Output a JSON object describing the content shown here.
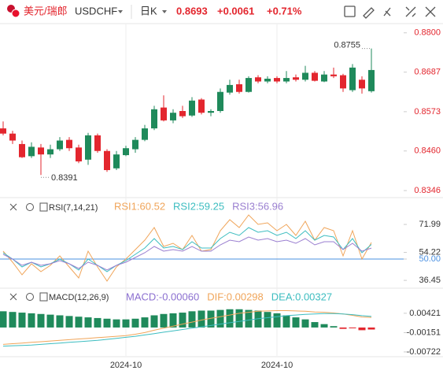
{
  "header": {
    "name": "美元/瑞郎",
    "symbol": "USDCHF",
    "period": "日K",
    "price": "0.8693",
    "change": "+0.0061",
    "change_pct": "+0.71%"
  },
  "chart_data": [
    {
      "type": "candlestick",
      "up_color": "#1f8a5b",
      "down_color": "#e3262e",
      "open": [
        0.8525,
        0.851,
        0.848,
        0.8445,
        0.847,
        0.845,
        0.8465,
        0.8492,
        0.847,
        0.8435,
        0.8505,
        0.846,
        0.841,
        0.8448,
        0.8465,
        0.8492,
        0.8525,
        0.8585,
        0.8548,
        0.8575,
        0.8562,
        0.8608,
        0.857,
        0.8575,
        0.8628,
        0.8652,
        0.863,
        0.8672,
        0.866,
        0.867,
        0.866,
        0.8672,
        0.8665,
        0.8685,
        0.866,
        0.868,
        0.8678,
        0.8635,
        0.8665,
        0.8632
      ],
      "high": [
        0.8545,
        0.8518,
        0.849,
        0.8485,
        0.848,
        0.8478,
        0.85,
        0.85,
        0.8478,
        0.8512,
        0.851,
        0.8465,
        0.846,
        0.8475,
        0.85,
        0.8535,
        0.859,
        0.862,
        0.858,
        0.859,
        0.8615,
        0.8612,
        0.858,
        0.864,
        0.8665,
        0.8665,
        0.8675,
        0.8678,
        0.8675,
        0.8675,
        0.869,
        0.868,
        0.8705,
        0.869,
        0.869,
        0.87,
        0.8682,
        0.871,
        0.8675,
        0.8755
      ],
      "low": [
        0.8505,
        0.848,
        0.844,
        0.844,
        0.8391,
        0.844,
        0.846,
        0.846,
        0.8425,
        0.842,
        0.8455,
        0.84,
        0.8405,
        0.8445,
        0.8455,
        0.8488,
        0.852,
        0.8545,
        0.854,
        0.8555,
        0.8558,
        0.8565,
        0.856,
        0.857,
        0.8622,
        0.8625,
        0.8628,
        0.8655,
        0.8655,
        0.8655,
        0.8655,
        0.866,
        0.866,
        0.866,
        0.8658,
        0.867,
        0.863,
        0.863,
        0.8625,
        0.8628
      ],
      "close": [
        0.851,
        0.849,
        0.8442,
        0.8472,
        0.845,
        0.8465,
        0.849,
        0.8468,
        0.843,
        0.8505,
        0.846,
        0.8405,
        0.845,
        0.8468,
        0.8492,
        0.8525,
        0.858,
        0.8548,
        0.857,
        0.856,
        0.8605,
        0.857,
        0.8575,
        0.863,
        0.865,
        0.863,
        0.867,
        0.866,
        0.8668,
        0.866,
        0.867,
        0.8665,
        0.8685,
        0.8662,
        0.868,
        0.8675,
        0.864,
        0.87,
        0.864,
        0.8693
      ],
      "ylim": [
        0.8328,
        0.8822
      ],
      "yticks": [
        {
          "value": 0.88,
          "label": "0.8800"
        },
        0.8687,
        0.8573,
        {
          "value": 0.846,
          "label": "0.8460"
        },
        0.8346
      ],
      "high_label": "0.8755",
      "low_label": "0.8391"
    },
    {
      "type": "line",
      "title": "RSI(7,14,21)",
      "ylim": [
        32,
        88.5
      ],
      "yticks": [
        71.99,
        54.22,
        {
          "value": 50,
          "label": "50.00"
        },
        36.45
      ],
      "reference_line": 50,
      "series": [
        {
          "name": "RSI1",
          "label": "RSI1:60.52",
          "color": "#f0a55a",
          "values": [
            55,
            48,
            40,
            47,
            42,
            46,
            52,
            45,
            38,
            55,
            45,
            36,
            45,
            50,
            56,
            62,
            70,
            58,
            60,
            56,
            65,
            55,
            56,
            68,
            75,
            70,
            78,
            72,
            73,
            68,
            72,
            65,
            74,
            62,
            70,
            68,
            52,
            68,
            50,
            60.52
          ]
        },
        {
          "name": "RSI2",
          "label": "RSI2:59.25",
          "color": "#3dbdc0",
          "values": [
            54,
            50,
            45,
            48,
            45,
            47,
            50,
            47,
            43,
            50,
            46,
            42,
            46,
            49,
            53,
            57,
            63,
            57,
            58,
            56,
            61,
            57,
            57,
            63,
            67,
            65,
            70,
            67,
            68,
            65,
            67,
            63,
            68,
            62,
            65,
            64,
            56,
            63,
            54,
            59.25
          ]
        },
        {
          "name": "RSI3",
          "label": "RSI3:56.96",
          "color": "#9a7fd0",
          "values": [
            53,
            50,
            46,
            48,
            46,
            47,
            49,
            47,
            44,
            48,
            46,
            43,
            46,
            48,
            51,
            54,
            58,
            55,
            56,
            55,
            58,
            55,
            55,
            59,
            62,
            61,
            64,
            62,
            63,
            61,
            62,
            60,
            63,
            59,
            61,
            61,
            56,
            60,
            55,
            56.96
          ]
        }
      ]
    },
    {
      "type": "macd",
      "title": "MACD(12,26,9)",
      "ylim": [
        -0.0084,
        0.0114
      ],
      "yticks": [
        0.00421,
        -0.00151,
        -0.00722
      ],
      "up_color": "#1f8a5b",
      "down_color": "#e3262e",
      "categories": [
        null,
        null,
        null,
        null,
        null,
        null,
        null,
        null,
        null,
        null,
        null,
        null,
        null,
        "2024-10",
        null,
        null,
        null,
        null,
        null,
        null,
        null,
        null,
        null,
        null,
        null,
        null,
        null,
        null,
        null,
        "2024-10",
        null,
        null,
        null,
        null,
        null,
        null,
        null,
        null,
        null,
        null
      ],
      "series": [
        {
          "name": "MACD",
          "label": "MACD:-0.00060",
          "color": "#8b6fd0",
          "values": [
            0.0048,
            0.0046,
            0.0044,
            0.0042,
            0.004,
            0.0038,
            0.0036,
            0.0034,
            0.0032,
            0.003,
            0.0028,
            0.0026,
            0.0024,
            0.0024,
            0.0026,
            0.003,
            0.0036,
            0.004,
            0.0042,
            0.0044,
            0.0048,
            0.005,
            0.005,
            0.0052,
            0.0054,
            0.0054,
            0.0052,
            0.005,
            0.0046,
            0.0042,
            0.0036,
            0.003,
            0.0024,
            0.0016,
            0.001,
            0.0004,
            -0.0004,
            -0.0002,
            -0.0008,
            -0.0006
          ]
        },
        {
          "name": "DIF",
          "label": "DIF:0.00298",
          "color": "#f0a55a",
          "values": [
            -0.005,
            -0.0048,
            -0.0046,
            -0.0044,
            -0.0042,
            -0.004,
            -0.0038,
            -0.0036,
            -0.0034,
            -0.0032,
            -0.003,
            -0.0028,
            -0.0026,
            -0.0024,
            -0.002,
            -0.0015,
            -0.0008,
            -0.0002,
            0.0004,
            0.001,
            0.0016,
            0.0022,
            0.0027,
            0.0032,
            0.0037,
            0.0042,
            0.0045,
            0.0048,
            0.0049,
            0.005,
            0.005,
            0.0049,
            0.0048,
            0.0046,
            0.0045,
            0.0043,
            0.004,
            0.0036,
            0.0031,
            0.00298
          ]
        },
        {
          "name": "DEA",
          "label": "DEA:0.00327",
          "color": "#3dbdc0",
          "values": [
            -0.0055,
            -0.0054,
            -0.0053,
            -0.0052,
            -0.005,
            -0.0048,
            -0.0046,
            -0.0044,
            -0.0042,
            -0.004,
            -0.0038,
            -0.0035,
            -0.0032,
            -0.0029,
            -0.0026,
            -0.0022,
            -0.0018,
            -0.0014,
            -0.001,
            -0.0006,
            -0.0002,
            0.0002,
            0.0006,
            0.001,
            0.0014,
            0.0018,
            0.0022,
            0.0026,
            0.0029,
            0.0032,
            0.0035,
            0.0037,
            0.0039,
            0.004,
            0.0041,
            0.0041,
            0.004,
            0.0038,
            0.0035,
            0.00327
          ]
        }
      ]
    }
  ]
}
